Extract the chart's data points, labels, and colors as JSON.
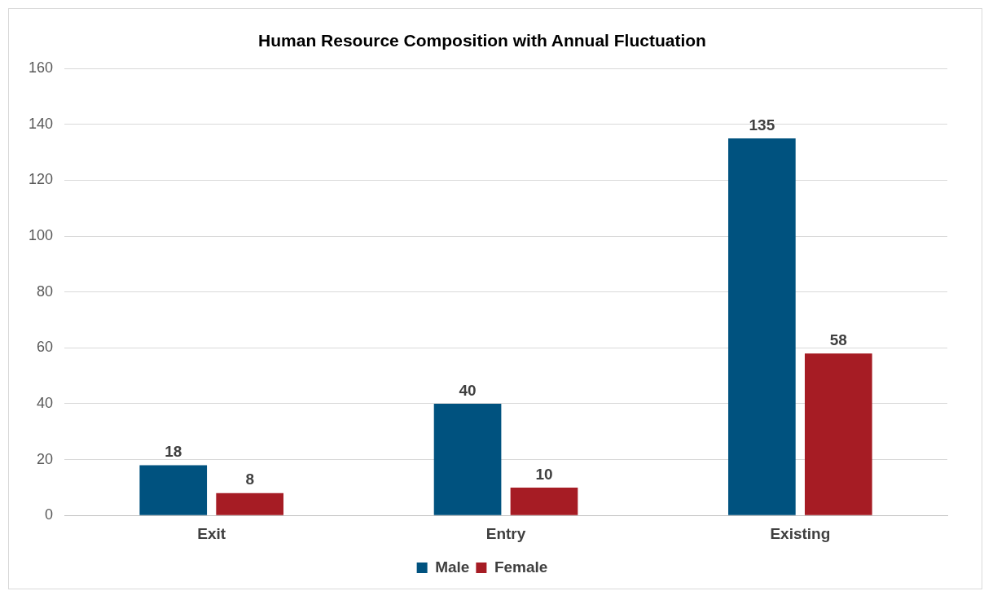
{
  "chart_data": {
    "type": "bar",
    "title": "Human Resource Composition with Annual Fluctuation",
    "categories": [
      "Exit",
      "Entry",
      "Existing"
    ],
    "series": [
      {
        "name": "Male",
        "color": "#00527f",
        "values": [
          18,
          40,
          135
        ]
      },
      {
        "name": "Female",
        "color": "#a61c24",
        "values": [
          8,
          10,
          58
        ]
      }
    ],
    "ylim": [
      0,
      160
    ],
    "yticks": [
      0,
      20,
      40,
      60,
      80,
      100,
      120,
      140,
      160
    ],
    "grid": "y",
    "legend": "bottom",
    "data_labels": true
  }
}
